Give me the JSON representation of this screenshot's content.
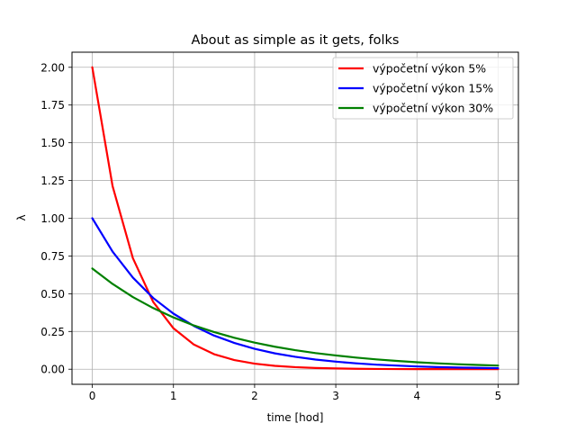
{
  "chart_data": {
    "type": "line",
    "title": "About as simple as it gets, folks",
    "xlabel": "time [hod]",
    "ylabel": "λ",
    "xlim": [
      -0.25,
      5.25
    ],
    "ylim": [
      -0.1,
      2.1
    ],
    "xticks": [
      0,
      1,
      2,
      3,
      4,
      5
    ],
    "xtick_labels": [
      "0",
      "1",
      "2",
      "3",
      "4",
      "5"
    ],
    "yticks": [
      0.0,
      0.25,
      0.5,
      0.75,
      1.0,
      1.25,
      1.5,
      1.75,
      2.0
    ],
    "ytick_labels": [
      "0.00",
      "0.25",
      "0.50",
      "0.75",
      "1.00",
      "1.25",
      "1.50",
      "1.75",
      "2.00"
    ],
    "grid": true,
    "legend_position": "upper-right",
    "x": [
      0,
      0.25,
      0.5,
      0.75,
      1,
      1.25,
      1.5,
      1.75,
      2,
      2.25,
      2.5,
      2.75,
      3,
      3.25,
      3.5,
      3.75,
      4,
      4.25,
      4.5,
      4.75,
      5
    ],
    "series": [
      {
        "name": "výpočetní výkon 5%",
        "color": "#ff0000",
        "values": [
          2.0,
          1.213,
          0.736,
          0.446,
          0.271,
          0.164,
          0.0996,
          0.0604,
          0.0366,
          0.0222,
          0.0135,
          0.0082,
          0.005,
          0.003,
          0.0018,
          0.0011,
          0.0007,
          0.0004,
          0.0002,
          0.0001,
          0.0001
        ]
      },
      {
        "name": "výpočetní výkon 15%",
        "color": "#0000ff",
        "values": [
          1.0,
          0.779,
          0.607,
          0.472,
          0.368,
          0.287,
          0.223,
          0.174,
          0.135,
          0.105,
          0.082,
          0.064,
          0.05,
          0.039,
          0.03,
          0.024,
          0.018,
          0.014,
          0.011,
          0.009,
          0.007
        ]
      },
      {
        "name": "výpočetní výkon 30%",
        "color": "#008000",
        "values": [
          0.667,
          0.565,
          0.478,
          0.405,
          0.343,
          0.29,
          0.246,
          0.208,
          0.176,
          0.149,
          0.126,
          0.107,
          0.091,
          0.077,
          0.065,
          0.055,
          0.046,
          0.039,
          0.033,
          0.028,
          0.024
        ]
      }
    ]
  }
}
